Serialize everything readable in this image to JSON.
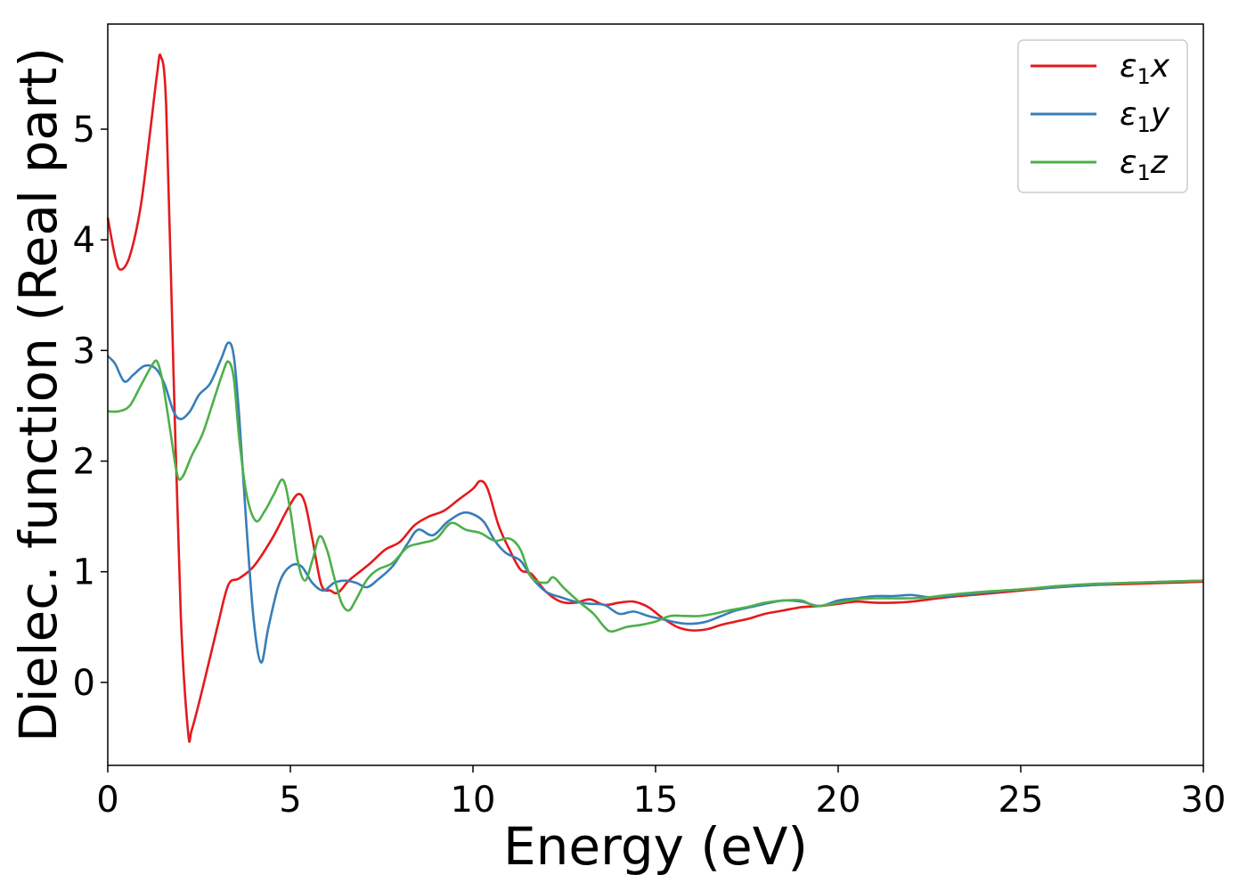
{
  "chart_data": {
    "type": "line",
    "xlabel": "Energy (eV)",
    "ylabel": "Dielec. function (Real part)",
    "xlim": [
      0,
      30
    ],
    "ylim": [
      -0.75,
      5.95
    ],
    "xticks": [
      0,
      5,
      10,
      15,
      20,
      25,
      30
    ],
    "yticks": [
      0,
      1,
      2,
      3,
      4,
      5
    ],
    "grid": false,
    "legend_position": "top-right",
    "series": [
      {
        "name": "ε1x",
        "legend": {
          "base": "ε",
          "sub": "1",
          "var": "x"
        },
        "color": "#e41a1c",
        "points": [
          [
            0,
            4.2
          ],
          [
            0.2,
            3.85
          ],
          [
            0.35,
            3.73
          ],
          [
            0.6,
            3.85
          ],
          [
            0.9,
            4.3
          ],
          [
            1.15,
            4.95
          ],
          [
            1.35,
            5.5
          ],
          [
            1.45,
            5.66
          ],
          [
            1.6,
            5.2
          ],
          [
            1.8,
            2.8
          ],
          [
            2.0,
            0.6
          ],
          [
            2.2,
            -0.45
          ],
          [
            2.3,
            -0.43
          ],
          [
            2.6,
            -0.05
          ],
          [
            3.0,
            0.5
          ],
          [
            3.3,
            0.88
          ],
          [
            3.6,
            0.94
          ],
          [
            4.0,
            1.05
          ],
          [
            4.5,
            1.3
          ],
          [
            4.9,
            1.55
          ],
          [
            5.2,
            1.7
          ],
          [
            5.4,
            1.62
          ],
          [
            5.6,
            1.3
          ],
          [
            5.85,
            0.88
          ],
          [
            6.1,
            0.83
          ],
          [
            6.3,
            0.81
          ],
          [
            6.6,
            0.92
          ],
          [
            6.9,
            1.0
          ],
          [
            7.2,
            1.08
          ],
          [
            7.6,
            1.2
          ],
          [
            8.0,
            1.27
          ],
          [
            8.4,
            1.42
          ],
          [
            8.8,
            1.5
          ],
          [
            9.2,
            1.55
          ],
          [
            9.6,
            1.65
          ],
          [
            10.0,
            1.75
          ],
          [
            10.2,
            1.82
          ],
          [
            10.4,
            1.75
          ],
          [
            10.7,
            1.42
          ],
          [
            11.0,
            1.2
          ],
          [
            11.3,
            1.02
          ],
          [
            11.6,
            0.98
          ],
          [
            12.0,
            0.82
          ],
          [
            12.4,
            0.73
          ],
          [
            12.8,
            0.72
          ],
          [
            13.2,
            0.75
          ],
          [
            13.6,
            0.7
          ],
          [
            14.0,
            0.72
          ],
          [
            14.4,
            0.73
          ],
          [
            14.8,
            0.68
          ],
          [
            15.2,
            0.58
          ],
          [
            15.6,
            0.5
          ],
          [
            16.0,
            0.47
          ],
          [
            16.4,
            0.48
          ],
          [
            16.8,
            0.52
          ],
          [
            17.2,
            0.55
          ],
          [
            17.6,
            0.58
          ],
          [
            18.0,
            0.62
          ],
          [
            18.5,
            0.65
          ],
          [
            19.0,
            0.68
          ],
          [
            19.5,
            0.69
          ],
          [
            20.0,
            0.71
          ],
          [
            20.5,
            0.73
          ],
          [
            21.0,
            0.72
          ],
          [
            21.5,
            0.72
          ],
          [
            22.0,
            0.73
          ],
          [
            23.0,
            0.77
          ],
          [
            24.0,
            0.8
          ],
          [
            25.0,
            0.83
          ],
          [
            26.0,
            0.86
          ],
          [
            27.0,
            0.88
          ],
          [
            28.0,
            0.89
          ],
          [
            29.0,
            0.9
          ],
          [
            30.0,
            0.91
          ]
        ]
      },
      {
        "name": "ε1y",
        "legend": {
          "base": "ε",
          "sub": "1",
          "var": "y"
        },
        "color": "#377eb8",
        "points": [
          [
            0,
            2.95
          ],
          [
            0.2,
            2.88
          ],
          [
            0.45,
            2.72
          ],
          [
            0.7,
            2.78
          ],
          [
            1.0,
            2.86
          ],
          [
            1.3,
            2.84
          ],
          [
            1.55,
            2.7
          ],
          [
            1.8,
            2.45
          ],
          [
            2.0,
            2.38
          ],
          [
            2.25,
            2.45
          ],
          [
            2.5,
            2.6
          ],
          [
            2.8,
            2.7
          ],
          [
            3.1,
            2.92
          ],
          [
            3.3,
            3.07
          ],
          [
            3.45,
            2.95
          ],
          [
            3.6,
            2.4
          ],
          [
            3.8,
            1.4
          ],
          [
            4.0,
            0.55
          ],
          [
            4.2,
            0.18
          ],
          [
            4.4,
            0.5
          ],
          [
            4.7,
            0.9
          ],
          [
            5.0,
            1.05
          ],
          [
            5.3,
            1.05
          ],
          [
            5.6,
            0.9
          ],
          [
            5.9,
            0.83
          ],
          [
            6.2,
            0.9
          ],
          [
            6.5,
            0.92
          ],
          [
            6.8,
            0.9
          ],
          [
            7.1,
            0.86
          ],
          [
            7.4,
            0.93
          ],
          [
            7.8,
            1.05
          ],
          [
            8.2,
            1.25
          ],
          [
            8.5,
            1.38
          ],
          [
            8.9,
            1.33
          ],
          [
            9.3,
            1.45
          ],
          [
            9.7,
            1.53
          ],
          [
            10.0,
            1.52
          ],
          [
            10.3,
            1.45
          ],
          [
            10.6,
            1.28
          ],
          [
            10.9,
            1.17
          ],
          [
            11.3,
            1.1
          ],
          [
            11.6,
            0.95
          ],
          [
            12.0,
            0.82
          ],
          [
            12.4,
            0.77
          ],
          [
            12.8,
            0.73
          ],
          [
            13.2,
            0.71
          ],
          [
            13.6,
            0.7
          ],
          [
            14.0,
            0.62
          ],
          [
            14.4,
            0.64
          ],
          [
            14.8,
            0.6
          ],
          [
            15.2,
            0.57
          ],
          [
            15.6,
            0.54
          ],
          [
            16.0,
            0.53
          ],
          [
            16.4,
            0.55
          ],
          [
            16.8,
            0.6
          ],
          [
            17.2,
            0.65
          ],
          [
            17.6,
            0.68
          ],
          [
            18.0,
            0.71
          ],
          [
            18.5,
            0.74
          ],
          [
            19.0,
            0.73
          ],
          [
            19.5,
            0.69
          ],
          [
            20.0,
            0.74
          ],
          [
            20.5,
            0.76
          ],
          [
            21.0,
            0.78
          ],
          [
            21.5,
            0.78
          ],
          [
            22.0,
            0.79
          ],
          [
            22.5,
            0.77
          ],
          [
            23.0,
            0.78
          ],
          [
            24.0,
            0.81
          ],
          [
            25.0,
            0.84
          ],
          [
            26.0,
            0.86
          ],
          [
            27.0,
            0.88
          ],
          [
            28.0,
            0.9
          ],
          [
            29.0,
            0.91
          ],
          [
            30.0,
            0.92
          ]
        ]
      },
      {
        "name": "ε1z",
        "legend": {
          "base": "ε",
          "sub": "1",
          "var": "z"
        },
        "color": "#4daf4a",
        "points": [
          [
            0,
            2.45
          ],
          [
            0.3,
            2.45
          ],
          [
            0.6,
            2.5
          ],
          [
            0.9,
            2.68
          ],
          [
            1.2,
            2.86
          ],
          [
            1.35,
            2.9
          ],
          [
            1.5,
            2.72
          ],
          [
            1.7,
            2.3
          ],
          [
            1.9,
            1.88
          ],
          [
            2.05,
            1.86
          ],
          [
            2.3,
            2.05
          ],
          [
            2.6,
            2.25
          ],
          [
            2.9,
            2.55
          ],
          [
            3.15,
            2.8
          ],
          [
            3.3,
            2.9
          ],
          [
            3.45,
            2.75
          ],
          [
            3.6,
            2.2
          ],
          [
            3.8,
            1.7
          ],
          [
            4.05,
            1.46
          ],
          [
            4.3,
            1.55
          ],
          [
            4.55,
            1.7
          ],
          [
            4.8,
            1.83
          ],
          [
            5.0,
            1.55
          ],
          [
            5.2,
            1.1
          ],
          [
            5.4,
            0.92
          ],
          [
            5.6,
            1.1
          ],
          [
            5.8,
            1.32
          ],
          [
            6.0,
            1.2
          ],
          [
            6.2,
            0.95
          ],
          [
            6.4,
            0.72
          ],
          [
            6.6,
            0.65
          ],
          [
            6.8,
            0.75
          ],
          [
            7.1,
            0.93
          ],
          [
            7.4,
            1.02
          ],
          [
            7.8,
            1.08
          ],
          [
            8.2,
            1.22
          ],
          [
            8.6,
            1.26
          ],
          [
            9.0,
            1.3
          ],
          [
            9.4,
            1.44
          ],
          [
            9.8,
            1.38
          ],
          [
            10.2,
            1.35
          ],
          [
            10.6,
            1.28
          ],
          [
            11.0,
            1.3
          ],
          [
            11.3,
            1.2
          ],
          [
            11.6,
            0.95
          ],
          [
            12.0,
            0.9
          ],
          [
            12.2,
            0.95
          ],
          [
            12.5,
            0.85
          ],
          [
            12.9,
            0.73
          ],
          [
            13.3,
            0.62
          ],
          [
            13.6,
            0.5
          ],
          [
            13.8,
            0.46
          ],
          [
            14.2,
            0.5
          ],
          [
            14.6,
            0.52
          ],
          [
            15.0,
            0.55
          ],
          [
            15.4,
            0.6
          ],
          [
            15.8,
            0.6
          ],
          [
            16.2,
            0.6
          ],
          [
            16.6,
            0.62
          ],
          [
            17.0,
            0.65
          ],
          [
            17.5,
            0.68
          ],
          [
            18.0,
            0.72
          ],
          [
            18.5,
            0.74
          ],
          [
            19.0,
            0.74
          ],
          [
            19.4,
            0.69
          ],
          [
            20.0,
            0.72
          ],
          [
            20.5,
            0.75
          ],
          [
            21.0,
            0.76
          ],
          [
            21.5,
            0.76
          ],
          [
            22.0,
            0.76
          ],
          [
            22.5,
            0.77
          ],
          [
            23.0,
            0.79
          ],
          [
            24.0,
            0.82
          ],
          [
            25.0,
            0.84
          ],
          [
            26.0,
            0.87
          ],
          [
            27.0,
            0.89
          ],
          [
            28.0,
            0.9
          ],
          [
            29.0,
            0.91
          ],
          [
            30.0,
            0.92
          ]
        ]
      }
    ]
  }
}
